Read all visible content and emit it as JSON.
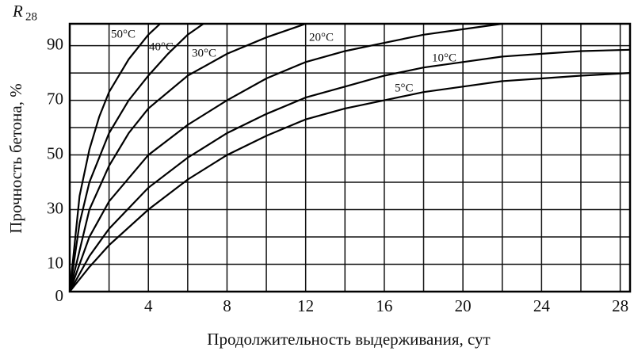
{
  "chart_data": {
    "type": "line",
    "y_corner_label": {
      "base": "R",
      "sub": "28"
    },
    "xlabel": "Продолжительность выдерживания, сут",
    "ylabel": "Прочность бетона, %",
    "xlim": [
      0,
      28.5
    ],
    "ylim": [
      0,
      98
    ],
    "xticks": [
      4,
      8,
      12,
      16,
      20,
      24,
      28
    ],
    "yticks": [
      0,
      10,
      30,
      50,
      70,
      90
    ],
    "x_grid": [
      2,
      4,
      6,
      8,
      10,
      12,
      14,
      16,
      18,
      20,
      22,
      24,
      26,
      28
    ],
    "y_grid": [
      10,
      20,
      30,
      40,
      50,
      60,
      70,
      80,
      90
    ],
    "grid": true,
    "series": [
      {
        "name": "50°C",
        "color": "#000000",
        "x": [
          0,
          0.5,
          1,
          1.5,
          2,
          3,
          4,
          4.6
        ],
        "values": [
          0,
          35,
          52,
          64,
          73,
          85,
          94,
          98
        ]
      },
      {
        "name": "40°C",
        "color": "#000000",
        "x": [
          0,
          0.5,
          1,
          2,
          3,
          4,
          5,
          6,
          6.8
        ],
        "values": [
          0,
          25,
          40,
          58,
          70,
          79,
          87,
          94,
          98
        ]
      },
      {
        "name": "30°C",
        "color": "#000000",
        "x": [
          0,
          1,
          2,
          3,
          4,
          6,
          8,
          10,
          12
        ],
        "values": [
          0,
          30,
          46,
          58,
          67,
          79,
          87,
          93,
          98
        ]
      },
      {
        "name": "20°C",
        "color": "#000000",
        "x": [
          0,
          1,
          2,
          4,
          6,
          8,
          10,
          12,
          14,
          16,
          18,
          20,
          22
        ],
        "values": [
          0,
          20,
          33,
          50,
          61,
          70,
          78,
          84,
          88,
          91,
          94,
          96,
          98
        ]
      },
      {
        "name": "10°C",
        "color": "#000000",
        "x": [
          0,
          1,
          2,
          4,
          6,
          8,
          10,
          12,
          14,
          16,
          18,
          20,
          22,
          24,
          26,
          28.5
        ],
        "values": [
          0,
          13,
          23,
          38,
          49,
          58,
          65,
          71,
          75,
          79,
          82,
          84,
          86,
          87,
          88,
          88.5
        ]
      },
      {
        "name": "5°C",
        "color": "#000000",
        "x": [
          0,
          1,
          2,
          4,
          6,
          8,
          10,
          12,
          14,
          16,
          18,
          20,
          22,
          24,
          26,
          28.5
        ],
        "values": [
          0,
          9,
          17,
          30,
          41,
          50,
          57,
          63,
          67,
          70,
          73,
          75,
          77,
          78,
          79,
          80
        ]
      }
    ]
  }
}
